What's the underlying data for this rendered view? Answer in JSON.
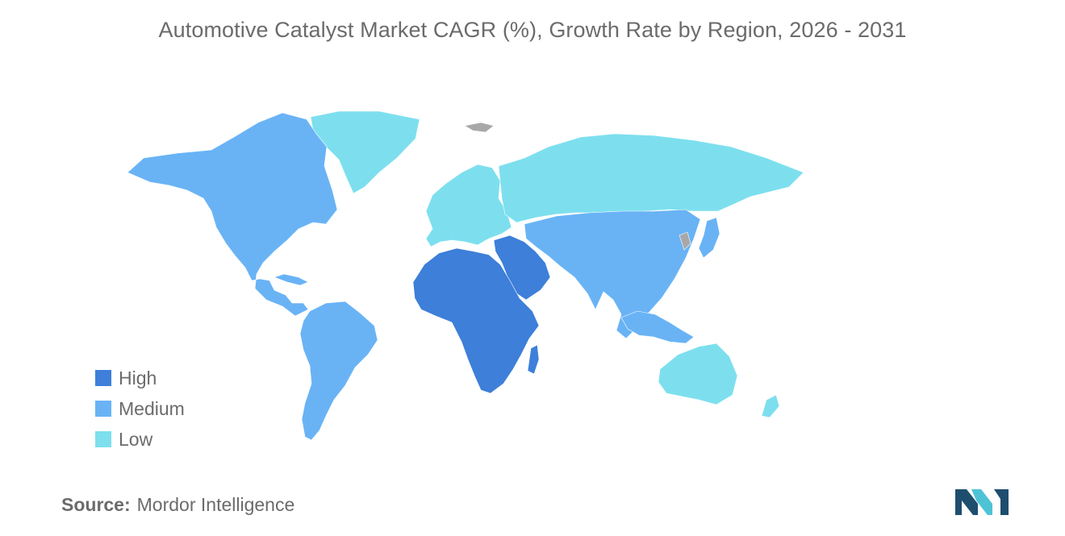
{
  "title": "Automotive Catalyst Market CAGR (%), Growth Rate by Region, 2026 - 2031",
  "colors": {
    "high": "#3d7fd9",
    "medium": "#69b3f5",
    "low": "#7ddfee",
    "no_data": "#a8a8a8",
    "text": "#6b6b6b",
    "logo_dark": "#1e4e6e",
    "logo_light": "#4fc3d6"
  },
  "legend": {
    "items": [
      {
        "label": "High",
        "color": "#3d7fd9"
      },
      {
        "label": "Medium",
        "color": "#69b3f5"
      },
      {
        "label": "Low",
        "color": "#7ddfee"
      }
    ]
  },
  "regions": {
    "north_america": "Medium",
    "south_america": "Medium",
    "europe": "Low",
    "greenland": "Low",
    "russia": "Low",
    "asia": "Medium",
    "middle_east": "High",
    "africa": "High",
    "oceania": "Low"
  },
  "source": {
    "label": "Source:",
    "value": "Mordor Intelligence"
  },
  "logo": {
    "icon": "mordor-intelligence-logo"
  }
}
